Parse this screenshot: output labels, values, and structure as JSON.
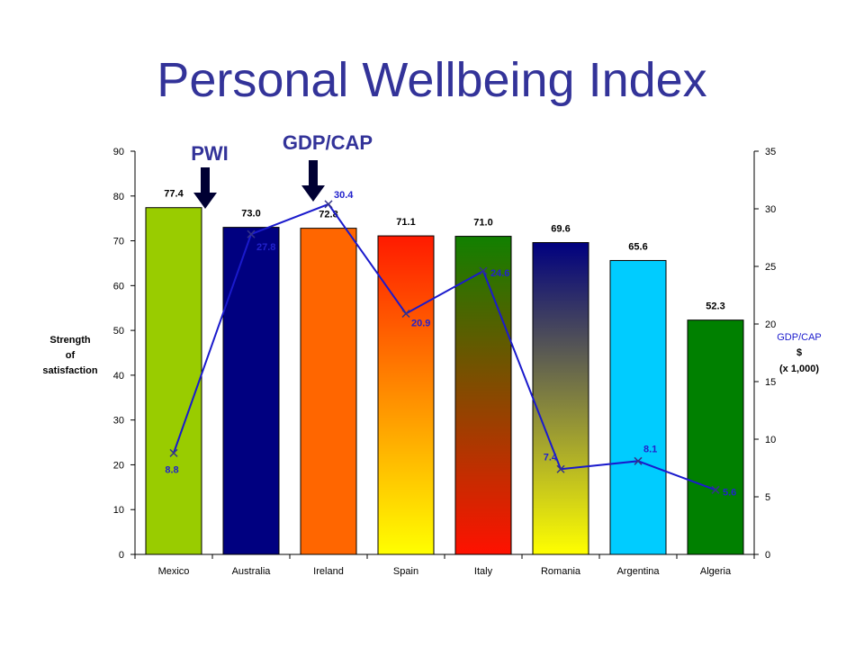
{
  "title": "Personal Wellbeing Index",
  "chart_data": {
    "type": "bar",
    "categories": [
      "Mexico",
      "Australia",
      "Ireland",
      "Spain",
      "Italy",
      "Romania",
      "Argentina",
      "Algeria"
    ],
    "series": [
      {
        "name": "PWI",
        "axis": "left",
        "type": "bar",
        "values": [
          77.4,
          73.0,
          72.8,
          71.1,
          71.0,
          69.6,
          65.6,
          52.3
        ],
        "labels": [
          "77.4",
          "73.0",
          "72.8",
          "71.1",
          "71.0",
          "69.6",
          "65.6",
          "52.3"
        ]
      },
      {
        "name": "GDP/CAP",
        "axis": "right",
        "type": "line",
        "values": [
          8.8,
          27.8,
          30.4,
          20.9,
          24.6,
          7.4,
          8.1,
          5.6
        ],
        "labels": [
          "8.8",
          "27.8",
          "30.4",
          "20.9",
          "24.6",
          "7.4",
          "8.1",
          "5.6"
        ]
      }
    ],
    "ylabel": [
      "Strength",
      "of",
      "satisfaction"
    ],
    "y2label": [
      "GDP/CAP",
      "$",
      "(x 1,000)"
    ],
    "ylim": [
      0,
      90
    ],
    "y2lim": [
      0,
      35
    ],
    "yticks": [
      0,
      10,
      20,
      30,
      40,
      50,
      60,
      70,
      80,
      90
    ],
    "y2ticks": [
      0,
      5,
      10,
      15,
      20,
      25,
      30,
      35
    ],
    "annotations": [
      "PWI",
      "GDP/CAP"
    ],
    "bar_colors": [
      "#99cc00",
      "#000080",
      "#ff6600",
      "gradient-red-yellow",
      "gradient-green-red",
      "gradient-navy-yellow",
      "#00ccff",
      "#008000"
    ],
    "line_color": "#1a1acc"
  }
}
